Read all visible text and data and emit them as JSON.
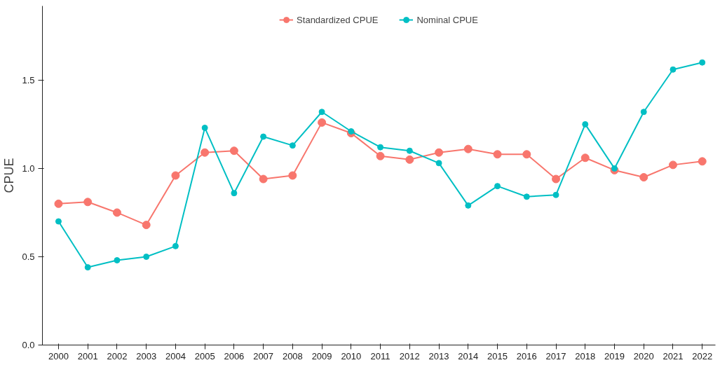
{
  "chart_data": {
    "type": "line",
    "ylabel": "CPUE",
    "categories": [
      "2000",
      "2001",
      "2002",
      "2003",
      "2004",
      "2005",
      "2006",
      "2007",
      "2008",
      "2009",
      "2010",
      "2011",
      "2012",
      "2013",
      "2014",
      "2015",
      "2016",
      "2017",
      "2018",
      "2019",
      "2020",
      "2021",
      "2022"
    ],
    "series": [
      {
        "name": "Standardized CPUE",
        "color": "#f8766d",
        "values": [
          0.8,
          0.81,
          0.75,
          0.68,
          0.96,
          1.09,
          1.1,
          0.94,
          0.96,
          1.26,
          1.2,
          1.07,
          1.05,
          1.09,
          1.11,
          1.08,
          1.08,
          0.94,
          1.06,
          0.99,
          0.95,
          1.02,
          1.04
        ]
      },
      {
        "name": "Nominal CPUE",
        "color": "#00bfc4",
        "values": [
          0.7,
          0.44,
          0.48,
          0.5,
          0.56,
          1.23,
          0.86,
          1.18,
          1.13,
          1.32,
          1.21,
          1.12,
          1.1,
          1.03,
          0.79,
          0.9,
          0.84,
          0.85,
          1.25,
          1.0,
          1.32,
          1.56,
          1.6
        ]
      }
    ],
    "ylim": [
      0,
      1.92
    ],
    "yticks": [
      {
        "value": 0,
        "label": "0.0"
      },
      {
        "value": 0.5,
        "label": "0.5"
      },
      {
        "value": 1,
        "label": "1.0"
      },
      {
        "value": 1.5,
        "label": "1.5"
      }
    ],
    "grid": false,
    "legend": "top",
    "marker": "circle",
    "line_style": "solid"
  }
}
